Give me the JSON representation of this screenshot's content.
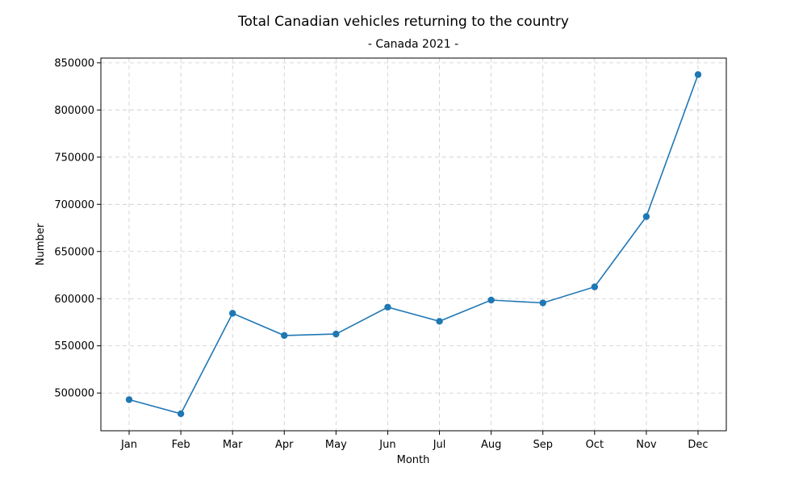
{
  "chart_data": {
    "type": "line",
    "title": "Total Canadian vehicles returning to the country",
    "subtitle": "- Canada 2021 -",
    "xlabel": "Month",
    "ylabel": "Number",
    "categories": [
      "Jan",
      "Feb",
      "Mar",
      "Apr",
      "May",
      "Jun",
      "Jul",
      "Aug",
      "Sep",
      "Oct",
      "Nov",
      "Dec"
    ],
    "series": [
      {
        "values": [
          493000,
          478000,
          584500,
          561000,
          562500,
          591000,
          576000,
          598500,
          595500,
          612500,
          687000,
          837500
        ]
      }
    ],
    "ylim": [
      460000,
      855000
    ],
    "yticks": [
      500000,
      550000,
      600000,
      650000,
      700000,
      750000,
      800000,
      850000
    ],
    "grid": true,
    "marker": "circle",
    "line_color": "#1f77b4"
  }
}
